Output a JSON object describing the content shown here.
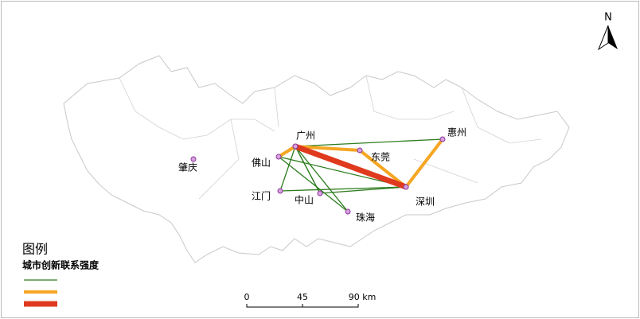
{
  "north": "N",
  "cities": [
    {
      "label": "广州"
    },
    {
      "label": "佛山"
    },
    {
      "label": "东莞"
    },
    {
      "label": "惠州"
    },
    {
      "label": "深圳"
    },
    {
      "label": "肇庆"
    },
    {
      "label": "江门"
    },
    {
      "label": "中山"
    },
    {
      "label": "珠海"
    }
  ],
  "legend": {
    "title": "图例",
    "subtitle": "城市创新联系强度"
  },
  "scale": {
    "labels": [
      "0",
      "45",
      "90 km"
    ]
  }
}
